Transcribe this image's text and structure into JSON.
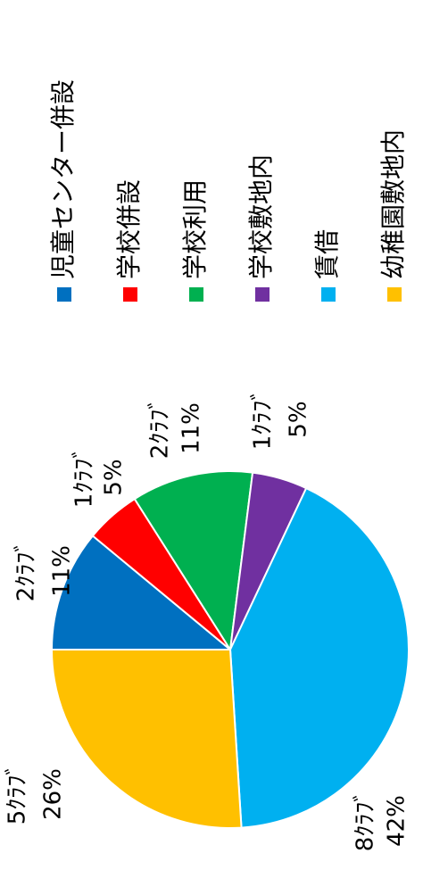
{
  "chart_data": {
    "type": "pie",
    "categories": [
      "児童センター併設",
      "学校併設",
      "学校利用",
      "学校敷地内",
      "賃借",
      "幼稚園敷地内"
    ],
    "values": [
      11,
      5,
      11,
      5,
      42,
      26
    ],
    "value_labels": [
      "11%",
      "5%",
      "11%",
      "5%",
      "42%",
      "26%"
    ],
    "club_labels": [
      "2ｸﾗﾌﾞ",
      "1ｸﾗﾌﾞ",
      "2ｸﾗﾌﾞ",
      "1ｸﾗﾌﾞ",
      "8ｸﾗﾌﾞ",
      "5ｸﾗﾌﾞ"
    ],
    "colors": [
      "#0070c0",
      "#ff0000",
      "#00b050",
      "#7030a0",
      "#00b0f0",
      "#ffc000"
    ],
    "legend": "right"
  }
}
